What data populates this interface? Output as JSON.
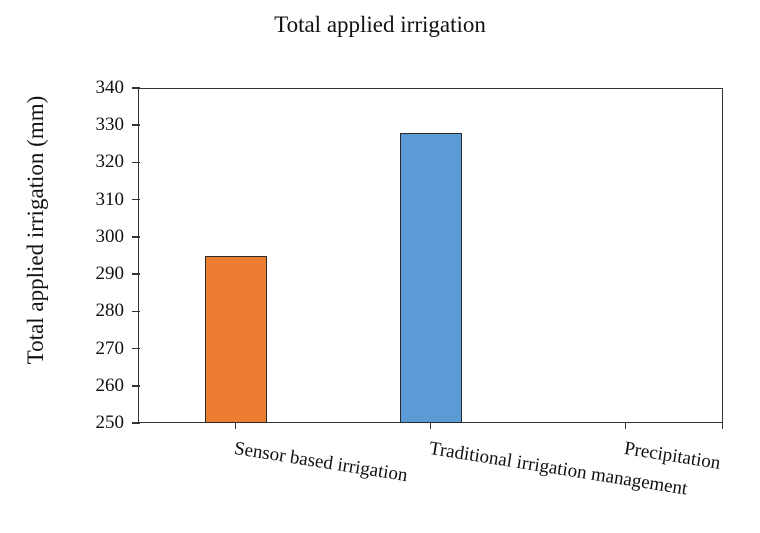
{
  "chart_data": {
    "type": "bar",
    "title": "Total applied irrigation",
    "xlabel": "",
    "ylabel": "Total applied irrigation (mm)",
    "ylim": [
      250,
      340
    ],
    "yticks": [
      250,
      260,
      270,
      280,
      290,
      300,
      310,
      320,
      330,
      340
    ],
    "categories": [
      "Sensor based irrigation",
      "Traditional irrigation management",
      "Precipitation"
    ],
    "values": [
      295,
      328,
      null
    ],
    "colors": [
      "#ED7D31",
      "#5B9BD5",
      null
    ],
    "grid": false,
    "legend": "none"
  }
}
